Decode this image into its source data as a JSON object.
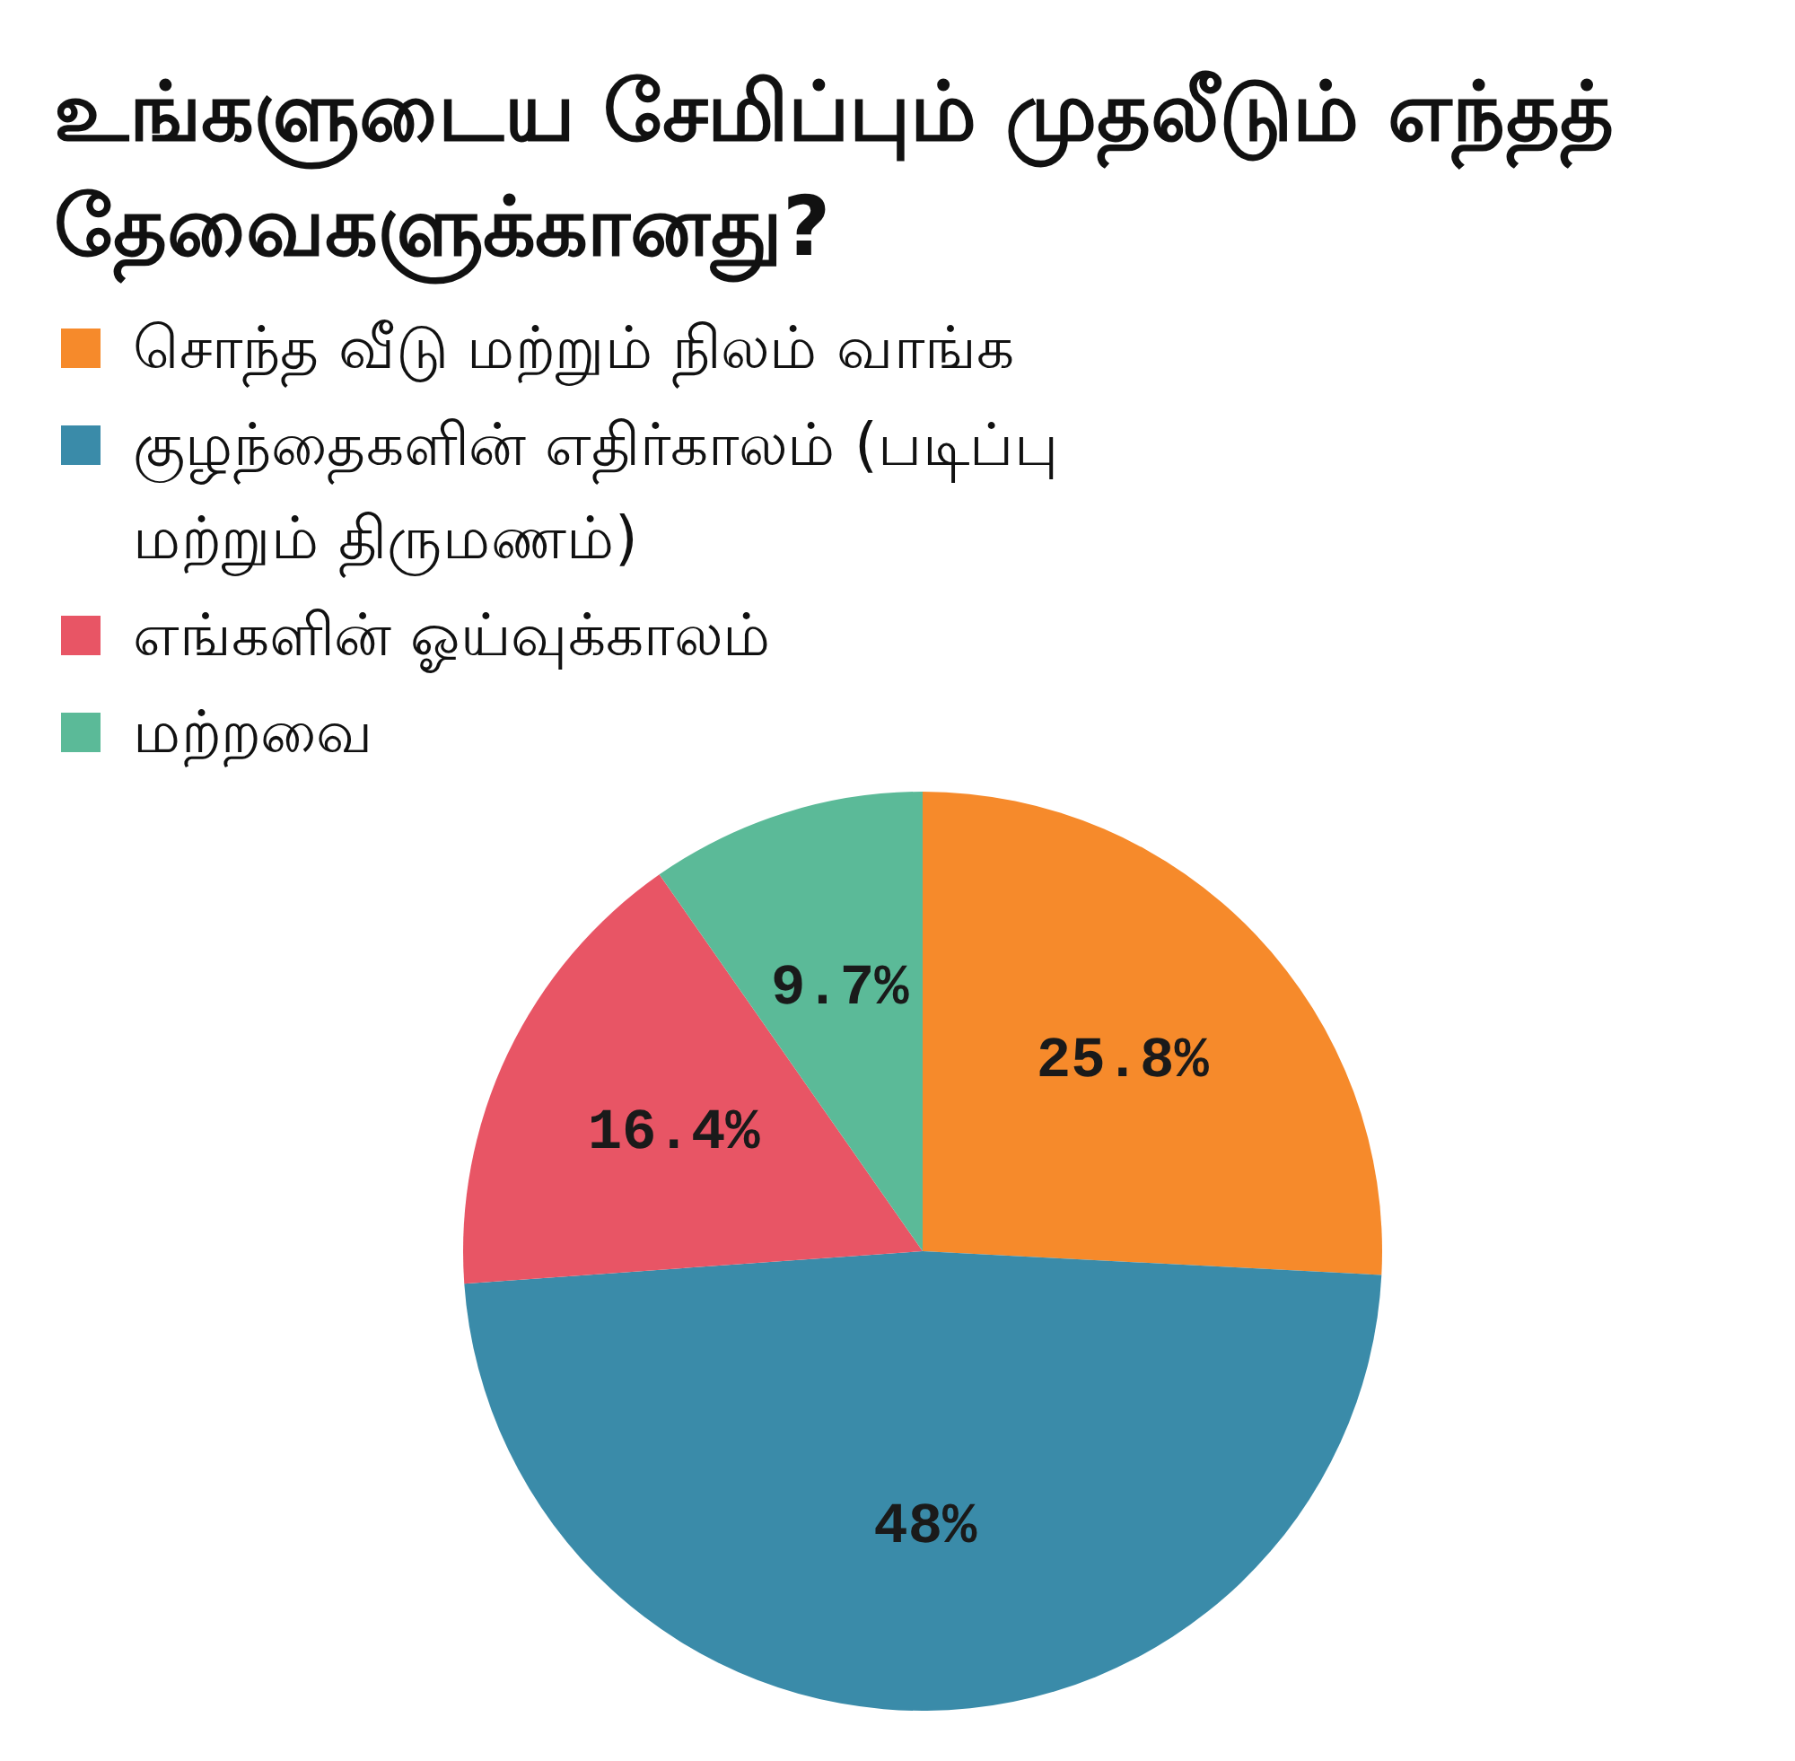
{
  "chart_data": {
    "type": "pie",
    "title": "உங்களுடைய சேமிப்பும் முதலீடும் எந்தத் தேவைகளுக்கானது?",
    "categories": [
      "சொந்த வீடு மற்றும் நிலம் வாங்க",
      "குழந்தைகளின் எதிர்காலம் (படிப்பு மற்றும் திருமணம்)",
      "எங்களின் ஓய்வுக்காலம்",
      "மற்றவை"
    ],
    "values": [
      25.8,
      48,
      16.4,
      9.7
    ],
    "value_labels": [
      "25.8%",
      "48%",
      "16.4%",
      "9.7%"
    ],
    "colors": [
      "#f68a2b",
      "#3a8ba9",
      "#e85565",
      "#5bba98"
    ],
    "legend": "top left"
  }
}
